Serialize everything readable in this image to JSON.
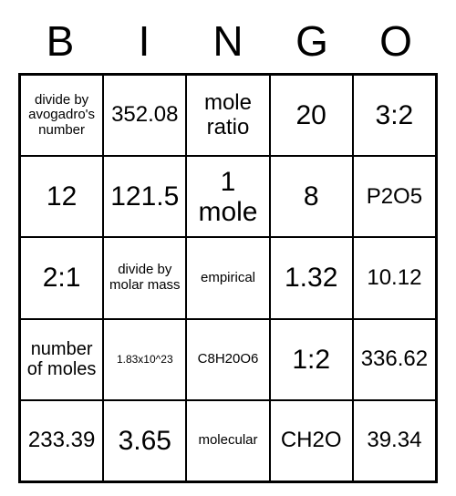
{
  "bingo": {
    "header": [
      "B",
      "I",
      "N",
      "G",
      "O"
    ],
    "grid_size": 5,
    "cells": [
      [
        {
          "text": "divide by avogadro's number",
          "size": "sm"
        },
        {
          "text": "352.08",
          "size": "lg"
        },
        {
          "text": "mole ratio",
          "size": "lg"
        },
        {
          "text": "20",
          "size": "xl"
        },
        {
          "text": "3:2",
          "size": "xl"
        }
      ],
      [
        {
          "text": "12",
          "size": "xl"
        },
        {
          "text": "121.5",
          "size": "xl"
        },
        {
          "text": "1 mole",
          "size": "xl"
        },
        {
          "text": "8",
          "size": "xl"
        },
        {
          "text": "P2O5",
          "size": "lg"
        }
      ],
      [
        {
          "text": "2:1",
          "size": "xl"
        },
        {
          "text": "divide by molar mass",
          "size": "sm"
        },
        {
          "text": "empirical",
          "size": "sm"
        },
        {
          "text": "1.32",
          "size": "xl"
        },
        {
          "text": "10.12",
          "size": "lg"
        }
      ],
      [
        {
          "text": "number of moles",
          "size": "md"
        },
        {
          "text": "1.83x10^23",
          "size": "xs"
        },
        {
          "text": "C8H20O6",
          "size": "sm"
        },
        {
          "text": "1:2",
          "size": "xl"
        },
        {
          "text": "336.62",
          "size": "lg"
        }
      ],
      [
        {
          "text": "233.39",
          "size": "lg"
        },
        {
          "text": "3.65",
          "size": "xl"
        },
        {
          "text": "molecular",
          "size": "sm"
        },
        {
          "text": "CH2O",
          "size": "lg"
        },
        {
          "text": "39.34",
          "size": "lg"
        }
      ]
    ],
    "colors": {
      "background": "#ffffff",
      "border": "#000000",
      "text": "#000000"
    }
  }
}
